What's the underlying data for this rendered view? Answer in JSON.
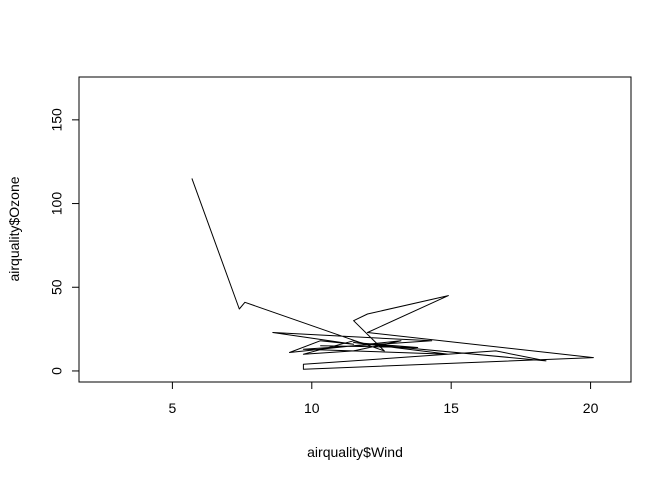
{
  "chart_data": {
    "type": "line",
    "title": "",
    "xlabel": "airquality$Wind",
    "ylabel": "airquality$Ozone",
    "xlim": [
      1.65,
      21.45
    ],
    "ylim": [
      -6.6,
      175.6
    ],
    "x_ticks": [
      5,
      10,
      15,
      20
    ],
    "y_ticks": [
      0,
      50,
      100,
      150
    ],
    "grid": false,
    "legend": "none",
    "line_color": "#000000",
    "series": [
      {
        "x": [
          5.7,
          7.4,
          7.6,
          12.6,
          11.5,
          12.0,
          14.9,
          12.0,
          20.1,
          9.7,
          9.7,
          16.6,
          18.4,
          12.0,
          11.5,
          9.7,
          11.5,
          13.2,
          9.2,
          10.3,
          11.5,
          8.6,
          12.0,
          14.3,
          9.7,
          14.9,
          11.5,
          13.8,
          10.3
        ],
        "y": [
          115,
          37,
          41,
          12,
          30,
          34,
          45,
          23,
          8,
          1,
          4,
          12,
          6,
          16,
          18,
          10,
          12,
          18,
          11,
          18,
          16,
          23,
          20,
          18,
          13,
          10,
          17,
          14,
          15
        ]
      }
    ]
  }
}
